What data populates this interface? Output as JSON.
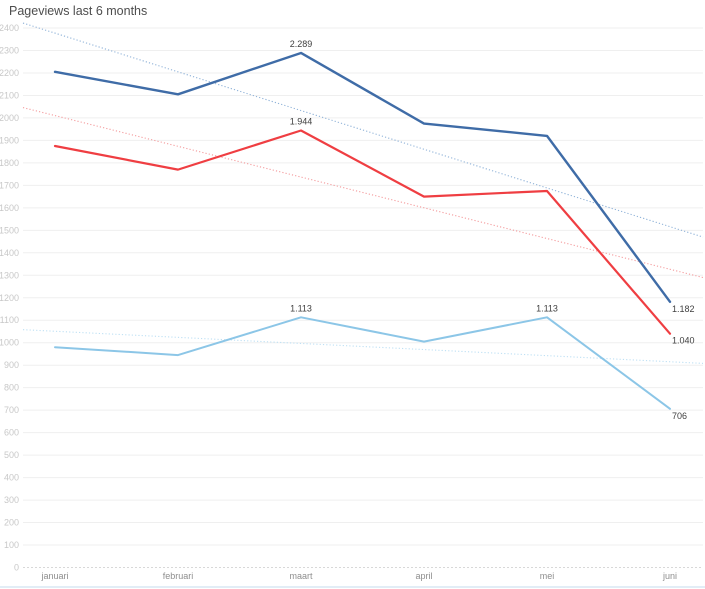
{
  "title": "Pageviews last 6 months",
  "colors": {
    "background": "#FFFFFF",
    "title": "#4D4D4D",
    "grid": "#EFEFEF",
    "zero_line": "#D8D8D8",
    "y_tick_label": "#C8C8C8",
    "x_tick_label": "#8E8E8E",
    "data_label": "#3F3F3F",
    "bottom_border": "#D9E7F4",
    "series_blue": "#3F6CA7",
    "series_red": "#EF3E42",
    "series_light_blue": "#8CC6E7",
    "trend_blue": "#8FB2D8",
    "trend_red": "#F49C9E",
    "trend_light_blue": "#BEE0F4"
  },
  "chart_data": {
    "type": "line",
    "title": "Pageviews last 6 months",
    "xlabel": "",
    "ylabel": "",
    "categories": [
      "januari",
      "februari",
      "maart",
      "april",
      "mei",
      "juni"
    ],
    "series": [
      {
        "name": "pageviews-primary-blue",
        "color": "#3F6CA7",
        "values": [
          2205,
          2105,
          2289,
          1975,
          1920,
          1182
        ],
        "data_labels": [
          "",
          "",
          "2.289",
          "",
          "",
          "1.182"
        ]
      },
      {
        "name": "pageviews-red",
        "color": "#EF3E42",
        "values": [
          1875,
          1770,
          1944,
          1650,
          1675,
          1040
        ],
        "data_labels": [
          "",
          "",
          "1.944",
          "",
          "",
          "1.040"
        ]
      },
      {
        "name": "pageviews-light-blue",
        "color": "#8CC6E7",
        "values": [
          980,
          945,
          1113,
          1005,
          1113,
          706
        ],
        "data_labels": [
          "",
          "",
          "1.113",
          "",
          "1.113",
          "706"
        ]
      }
    ],
    "trend_lines": [
      {
        "series": "pageviews-primary-blue",
        "color": "#8FB2D8",
        "start_value": 2422,
        "end_value": 1470
      },
      {
        "series": "pageviews-red",
        "color": "#F49C9E",
        "start_value": 2046,
        "end_value": 1290
      },
      {
        "series": "pageviews-light-blue",
        "color": "#BEE0F4",
        "start_value": 1058,
        "end_value": 908
      }
    ],
    "ylim": [
      0,
      2400
    ],
    "ytick_step": 100,
    "grid": true,
    "legend_position": "none"
  }
}
